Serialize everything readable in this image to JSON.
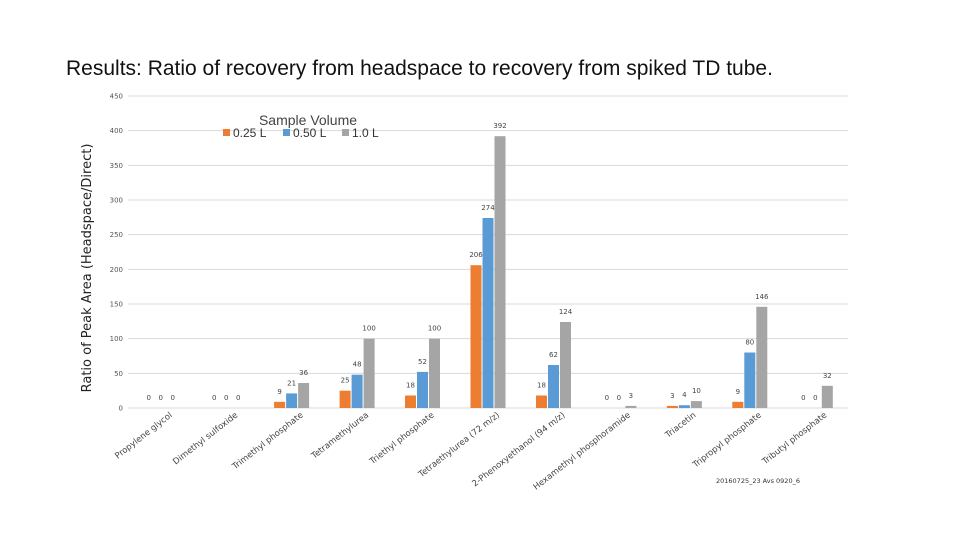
{
  "slide_title": "Results: Ratio of recovery from headspace to recovery from spiked TD tube.",
  "colors": {
    "s0": "#ED7D31",
    "s1": "#5B9BD5",
    "s2": "#A5A5A5",
    "grid": "#D9D9D9"
  },
  "chart_data": {
    "type": "bar",
    "title": "",
    "xlabel": "",
    "ylabel": "Ratio of Peak Area (Headspace/Direct)",
    "ylim": [
      0,
      450
    ],
    "yticks": [
      0,
      50,
      100,
      150,
      200,
      250,
      300,
      350,
      400,
      450
    ],
    "grid": true,
    "legend_title": "Sample Volume",
    "legend_position": "top",
    "categories": [
      "Propylene glycol",
      "Dimethyl sulfoxide",
      "Trimethyl phosphate",
      "Tetramethylurea",
      "Triethyl phosphate",
      "Tetraethylurea (72 m/z)",
      "2-Phenoxyethanol (94 m/z)",
      "Hexamethyl phosphoramide",
      "Triacetin",
      "Tripropyl phosphate",
      "Tributyl phosphate"
    ],
    "series": [
      {
        "name": "0.25 L",
        "values": [
          0,
          0,
          9,
          25,
          18,
          206,
          18,
          0,
          3,
          9,
          0
        ]
      },
      {
        "name": "0.50 L",
        "values": [
          0,
          0,
          21,
          48,
          52,
          274,
          62,
          0,
          4,
          80,
          0
        ]
      },
      {
        "name": "1.0 L",
        "values": [
          0,
          0,
          36,
          100,
          100,
          392,
          124,
          3,
          10,
          146,
          32
        ]
      }
    ],
    "value_labels": [
      [
        "0",
        "0",
        "9",
        "25",
        "18",
        "206",
        "18",
        "0",
        "3",
        "9",
        "0"
      ],
      [
        "0",
        "0",
        "21",
        "48",
        "52",
        "274",
        "62",
        "0",
        "4",
        "80",
        "0"
      ],
      [
        "0",
        "0",
        "36",
        "100",
        "100",
        "392",
        "124",
        "3",
        "10",
        "146",
        "32"
      ]
    ],
    "annotation": "20160725_23 Avs 0920_6"
  }
}
